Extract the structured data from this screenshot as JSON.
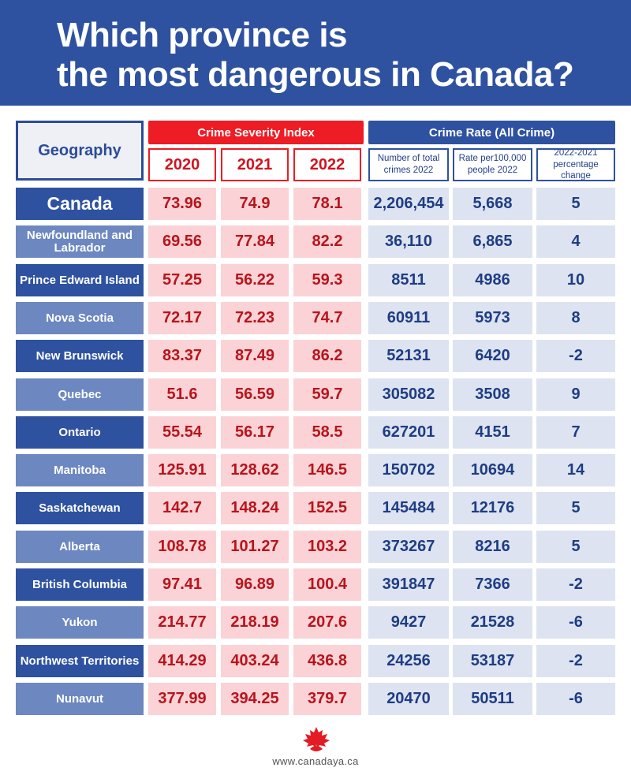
{
  "title": {
    "line1": "Which province is",
    "line2": "the most dangerous in Canada?"
  },
  "headers": {
    "geography": "Geography",
    "crime_severity_index": "Crime Severity Index",
    "crime_rate": "Crime Rate (All Crime)",
    "years": [
      "2020",
      "2021",
      "2022"
    ],
    "rate_columns": [
      "Number of total crimes 2022",
      "Rate per100,000 people 2022",
      "2022-2021 percentage change"
    ]
  },
  "footer": {
    "url": "www.canadaya.ca"
  },
  "colors": {
    "banner": "#2f52a0",
    "accent_red": "#ee1c25",
    "accent_blue": "#2f52a0",
    "red_cell": "#fbd3d6",
    "blue_cell": "#dde3f0"
  },
  "chart_data": {
    "type": "table",
    "title": "Which province is the most dangerous in Canada?",
    "columns": [
      "Geography",
      "Crime Severity Index 2020",
      "Crime Severity Index 2021",
      "Crime Severity Index 2022",
      "Number of total crimes 2022",
      "Rate per100,000 people 2022",
      "2022-2021 percentage change"
    ],
    "rows": [
      {
        "name": "Canada",
        "csi_2020": "73.96",
        "csi_2021": "74.9",
        "csi_2022": "78.1",
        "total_crimes_2022": "2,206,454",
        "rate_per_100k_2022": "5,668",
        "pct_change": "5"
      },
      {
        "name": "Newfoundland and Labrador",
        "csi_2020": "69.56",
        "csi_2021": "77.84",
        "csi_2022": "82.2",
        "total_crimes_2022": "36,110",
        "rate_per_100k_2022": "6,865",
        "pct_change": "4"
      },
      {
        "name": "Prince Edward Island",
        "csi_2020": "57.25",
        "csi_2021": "56.22",
        "csi_2022": "59.3",
        "total_crimes_2022": "8511",
        "rate_per_100k_2022": "4986",
        "pct_change": "10"
      },
      {
        "name": "Nova Scotia",
        "csi_2020": "72.17",
        "csi_2021": "72.23",
        "csi_2022": "74.7",
        "total_crimes_2022": "60911",
        "rate_per_100k_2022": "5973",
        "pct_change": "8"
      },
      {
        "name": "New Brunswick",
        "csi_2020": "83.37",
        "csi_2021": "87.49",
        "csi_2022": "86.2",
        "total_crimes_2022": "52131",
        "rate_per_100k_2022": "6420",
        "pct_change": "-2"
      },
      {
        "name": "Quebec",
        "csi_2020": "51.6",
        "csi_2021": "56.59",
        "csi_2022": "59.7",
        "total_crimes_2022": "305082",
        "rate_per_100k_2022": "3508",
        "pct_change": "9"
      },
      {
        "name": "Ontario",
        "csi_2020": "55.54",
        "csi_2021": "56.17",
        "csi_2022": "58.5",
        "total_crimes_2022": "627201",
        "rate_per_100k_2022": "4151",
        "pct_change": "7"
      },
      {
        "name": "Manitoba",
        "csi_2020": "125.91",
        "csi_2021": "128.62",
        "csi_2022": "146.5",
        "total_crimes_2022": "150702",
        "rate_per_100k_2022": "10694",
        "pct_change": "14"
      },
      {
        "name": "Saskatchewan",
        "csi_2020": "142.7",
        "csi_2021": "148.24",
        "csi_2022": "152.5",
        "total_crimes_2022": "145484",
        "rate_per_100k_2022": "12176",
        "pct_change": "5"
      },
      {
        "name": "Alberta",
        "csi_2020": "108.78",
        "csi_2021": "101.27",
        "csi_2022": "103.2",
        "total_crimes_2022": "373267",
        "rate_per_100k_2022": "8216",
        "pct_change": "5"
      },
      {
        "name": "British Columbia",
        "csi_2020": "97.41",
        "csi_2021": "96.89",
        "csi_2022": "100.4",
        "total_crimes_2022": "391847",
        "rate_per_100k_2022": "7366",
        "pct_change": "-2"
      },
      {
        "name": "Yukon",
        "csi_2020": "214.77",
        "csi_2021": "218.19",
        "csi_2022": "207.6",
        "total_crimes_2022": "9427",
        "rate_per_100k_2022": "21528",
        "pct_change": "-6"
      },
      {
        "name": "Northwest Territories",
        "csi_2020": "414.29",
        "csi_2021": "403.24",
        "csi_2022": "436.8",
        "total_crimes_2022": "24256",
        "rate_per_100k_2022": "53187",
        "pct_change": "-2"
      },
      {
        "name": "Nunavut",
        "csi_2020": "377.99",
        "csi_2021": "394.25",
        "csi_2022": "379.7",
        "total_crimes_2022": "20470",
        "rate_per_100k_2022": "50511",
        "pct_change": "-6"
      }
    ]
  }
}
